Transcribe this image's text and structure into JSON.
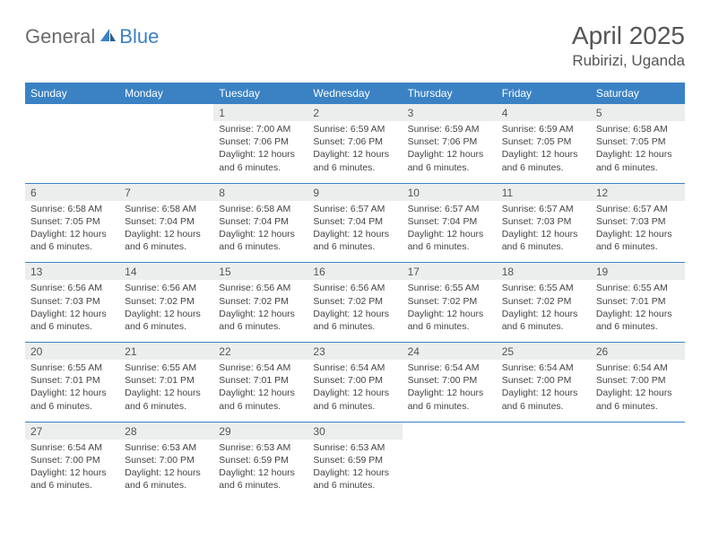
{
  "brand": {
    "part1": "General",
    "part2": "Blue"
  },
  "title": "April 2025",
  "location": "Rubirizi, Uganda",
  "dayNames": [
    "Sunday",
    "Monday",
    "Tuesday",
    "Wednesday",
    "Thursday",
    "Friday",
    "Saturday"
  ],
  "colors": {
    "headerBg": "#3b82c4",
    "dayNumBg": "#eceded",
    "text": "#444444",
    "titleText": "#555555"
  },
  "startOffset": 2,
  "days": [
    {
      "n": 1,
      "sunrise": "7:00 AM",
      "sunset": "7:06 PM",
      "daylight": "12 hours and 6 minutes."
    },
    {
      "n": 2,
      "sunrise": "6:59 AM",
      "sunset": "7:06 PM",
      "daylight": "12 hours and 6 minutes."
    },
    {
      "n": 3,
      "sunrise": "6:59 AM",
      "sunset": "7:06 PM",
      "daylight": "12 hours and 6 minutes."
    },
    {
      "n": 4,
      "sunrise": "6:59 AM",
      "sunset": "7:05 PM",
      "daylight": "12 hours and 6 minutes."
    },
    {
      "n": 5,
      "sunrise": "6:58 AM",
      "sunset": "7:05 PM",
      "daylight": "12 hours and 6 minutes."
    },
    {
      "n": 6,
      "sunrise": "6:58 AM",
      "sunset": "7:05 PM",
      "daylight": "12 hours and 6 minutes."
    },
    {
      "n": 7,
      "sunrise": "6:58 AM",
      "sunset": "7:04 PM",
      "daylight": "12 hours and 6 minutes."
    },
    {
      "n": 8,
      "sunrise": "6:58 AM",
      "sunset": "7:04 PM",
      "daylight": "12 hours and 6 minutes."
    },
    {
      "n": 9,
      "sunrise": "6:57 AM",
      "sunset": "7:04 PM",
      "daylight": "12 hours and 6 minutes."
    },
    {
      "n": 10,
      "sunrise": "6:57 AM",
      "sunset": "7:04 PM",
      "daylight": "12 hours and 6 minutes."
    },
    {
      "n": 11,
      "sunrise": "6:57 AM",
      "sunset": "7:03 PM",
      "daylight": "12 hours and 6 minutes."
    },
    {
      "n": 12,
      "sunrise": "6:57 AM",
      "sunset": "7:03 PM",
      "daylight": "12 hours and 6 minutes."
    },
    {
      "n": 13,
      "sunrise": "6:56 AM",
      "sunset": "7:03 PM",
      "daylight": "12 hours and 6 minutes."
    },
    {
      "n": 14,
      "sunrise": "6:56 AM",
      "sunset": "7:02 PM",
      "daylight": "12 hours and 6 minutes."
    },
    {
      "n": 15,
      "sunrise": "6:56 AM",
      "sunset": "7:02 PM",
      "daylight": "12 hours and 6 minutes."
    },
    {
      "n": 16,
      "sunrise": "6:56 AM",
      "sunset": "7:02 PM",
      "daylight": "12 hours and 6 minutes."
    },
    {
      "n": 17,
      "sunrise": "6:55 AM",
      "sunset": "7:02 PM",
      "daylight": "12 hours and 6 minutes."
    },
    {
      "n": 18,
      "sunrise": "6:55 AM",
      "sunset": "7:02 PM",
      "daylight": "12 hours and 6 minutes."
    },
    {
      "n": 19,
      "sunrise": "6:55 AM",
      "sunset": "7:01 PM",
      "daylight": "12 hours and 6 minutes."
    },
    {
      "n": 20,
      "sunrise": "6:55 AM",
      "sunset": "7:01 PM",
      "daylight": "12 hours and 6 minutes."
    },
    {
      "n": 21,
      "sunrise": "6:55 AM",
      "sunset": "7:01 PM",
      "daylight": "12 hours and 6 minutes."
    },
    {
      "n": 22,
      "sunrise": "6:54 AM",
      "sunset": "7:01 PM",
      "daylight": "12 hours and 6 minutes."
    },
    {
      "n": 23,
      "sunrise": "6:54 AM",
      "sunset": "7:00 PM",
      "daylight": "12 hours and 6 minutes."
    },
    {
      "n": 24,
      "sunrise": "6:54 AM",
      "sunset": "7:00 PM",
      "daylight": "12 hours and 6 minutes."
    },
    {
      "n": 25,
      "sunrise": "6:54 AM",
      "sunset": "7:00 PM",
      "daylight": "12 hours and 6 minutes."
    },
    {
      "n": 26,
      "sunrise": "6:54 AM",
      "sunset": "7:00 PM",
      "daylight": "12 hours and 6 minutes."
    },
    {
      "n": 27,
      "sunrise": "6:54 AM",
      "sunset": "7:00 PM",
      "daylight": "12 hours and 6 minutes."
    },
    {
      "n": 28,
      "sunrise": "6:53 AM",
      "sunset": "7:00 PM",
      "daylight": "12 hours and 6 minutes."
    },
    {
      "n": 29,
      "sunrise": "6:53 AM",
      "sunset": "6:59 PM",
      "daylight": "12 hours and 6 minutes."
    },
    {
      "n": 30,
      "sunrise": "6:53 AM",
      "sunset": "6:59 PM",
      "daylight": "12 hours and 6 minutes."
    }
  ],
  "labels": {
    "sunrise": "Sunrise:",
    "sunset": "Sunset:",
    "daylight": "Daylight:"
  }
}
